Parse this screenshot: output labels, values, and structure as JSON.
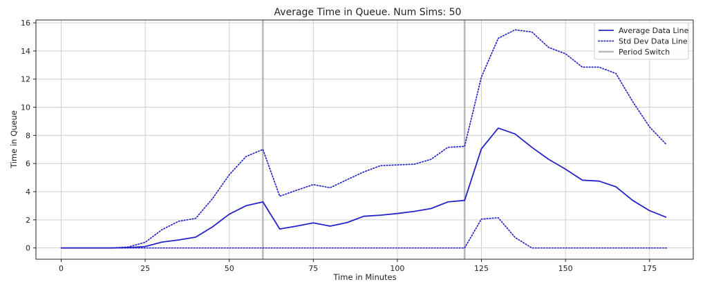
{
  "chart_data": {
    "type": "line",
    "title": "Average Time in Queue. Num Sims: 50",
    "xlabel": "Time in Minutes",
    "ylabel": "Time in Queue",
    "xlim": [
      -7.5,
      188
    ],
    "ylim": [
      -0.8,
      16.2
    ],
    "xticks": [
      0,
      25,
      50,
      75,
      100,
      125,
      150,
      175
    ],
    "yticks": [
      0,
      2,
      4,
      6,
      8,
      10,
      12,
      14,
      16
    ],
    "grid": true,
    "legend_position": "top-right",
    "x": [
      0,
      5,
      10,
      15,
      20,
      25,
      30,
      35,
      40,
      45,
      50,
      55,
      60,
      65,
      70,
      75,
      80,
      85,
      90,
      95,
      100,
      105,
      110,
      115,
      120,
      125,
      130,
      135,
      140,
      145,
      150,
      155,
      160,
      165,
      170,
      175,
      180
    ],
    "series": [
      {
        "name": "Average Data Line",
        "style": "solid",
        "color": "#2222c8",
        "values": [
          0.0,
          0.0,
          0.0,
          0.0,
          0.03,
          0.1,
          0.42,
          0.57,
          0.77,
          1.5,
          2.4,
          3.0,
          3.27,
          1.35,
          1.55,
          1.78,
          1.55,
          1.8,
          2.25,
          2.33,
          2.45,
          2.6,
          2.8,
          3.27,
          3.38,
          7.05,
          8.52,
          8.1,
          7.15,
          6.3,
          5.6,
          4.82,
          4.75,
          4.35,
          3.38,
          2.65,
          2.18
        ]
      },
      {
        "name": "Std Dev Data Line",
        "style": "dotted",
        "color": "#2222c8",
        "values": [
          0.0,
          0.0,
          0.0,
          0.0,
          0.07,
          0.4,
          1.3,
          1.9,
          2.1,
          3.5,
          5.2,
          6.5,
          7.0,
          3.68,
          4.1,
          4.5,
          4.28,
          4.85,
          5.4,
          5.85,
          5.9,
          5.95,
          6.3,
          7.15,
          7.22,
          12.15,
          14.9,
          15.5,
          15.35,
          14.25,
          13.8,
          12.85,
          12.85,
          12.4,
          10.4,
          8.6,
          7.35
        ]
      },
      {
        "name": "Std Dev Data Line",
        "style": "dotted",
        "color": "#2222c8",
        "values": [
          0.0,
          0.0,
          0.0,
          0.0,
          0.0,
          0.0,
          0.0,
          0.0,
          0.0,
          0.0,
          0.0,
          0.0,
          0.0,
          0.0,
          0.0,
          0.0,
          0.0,
          0.0,
          0.0,
          0.0,
          0.0,
          0.0,
          0.0,
          0.0,
          0.0,
          2.05,
          2.15,
          0.75,
          0.0,
          0.0,
          0.0,
          0.0,
          0.0,
          0.0,
          0.0,
          0.0,
          0.0
        ]
      }
    ],
    "period_switch_x": [
      60,
      120
    ],
    "period_switch_color": "#b8b8b8",
    "legend": [
      {
        "label": "Average Data Line",
        "style": "solid",
        "color": "#2222c8"
      },
      {
        "label": "Std Dev Data Line",
        "style": "dotted",
        "color": "#2222c8"
      },
      {
        "label": "Period Switch",
        "style": "solid",
        "color": "#b8b8b8"
      }
    ]
  }
}
